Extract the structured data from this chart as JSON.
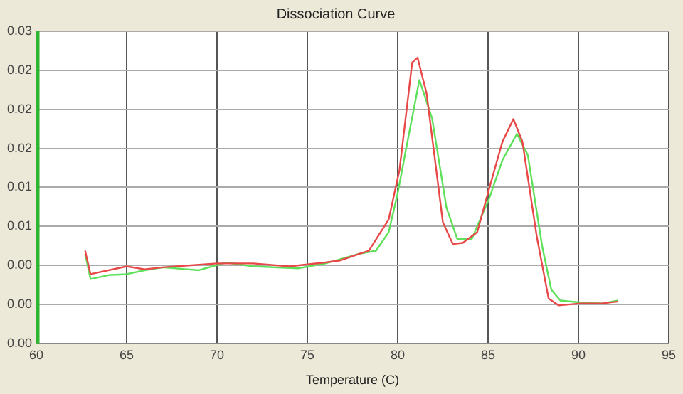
{
  "chart_data": {
    "type": "line",
    "title": "Dissociation Curve",
    "xlabel": "Temperature (C)",
    "xlim": [
      60,
      95
    ],
    "xticks": [
      60,
      65,
      70,
      75,
      80,
      85,
      90,
      95
    ],
    "ylim": [
      -0.004,
      0.028
    ],
    "yticks": [
      {
        "value": -0.004,
        "label": "0.00"
      },
      {
        "value": 0,
        "label": "0.00"
      },
      {
        "value": 0.004,
        "label": "0.00"
      },
      {
        "value": 0.008,
        "label": "0.01"
      },
      {
        "value": 0.012,
        "label": "0.01"
      },
      {
        "value": 0.016,
        "label": "0.02"
      },
      {
        "value": 0.02,
        "label": "0.02"
      },
      {
        "value": 0.024,
        "label": "0.02"
      },
      {
        "value": 0.028,
        "label": "0.03"
      }
    ],
    "grid": true,
    "legend": false,
    "marker": "none",
    "line_style": "solid",
    "series": [
      {
        "color": "#e84848",
        "x": [
          62.7,
          63.0,
          65,
          66,
          67,
          70,
          72,
          74,
          76,
          76.8,
          78.4,
          79.5,
          80.1,
          80.8,
          81.1,
          81.6,
          82.5,
          83.05,
          83.6,
          84.4,
          85.05,
          85.8,
          86.4,
          86.9,
          87.7,
          88.35,
          88.9,
          90.1,
          91.3,
          92.2
        ],
        "values": [
          0.0055,
          0.0031,
          0.0039,
          0.0036,
          0.0038,
          0.0042,
          0.0042,
          0.0039,
          0.0043,
          0.0045,
          0.0055,
          0.0087,
          0.0138,
          0.0248,
          0.0253,
          0.0216,
          0.0084,
          0.0062,
          0.0063,
          0.0074,
          0.0118,
          0.0167,
          0.019,
          0.0167,
          0.0069,
          0.0006,
          -0.0001,
          0.0001,
          0.0001,
          0.0003
        ]
      },
      {
        "color": "#5fe05a",
        "x": [
          62.7,
          63.0,
          64,
          65,
          66,
          67,
          69,
          70.5,
          72,
          74.5,
          76,
          77.9,
          78.8,
          79.5,
          80,
          80.5,
          81.2,
          81.9,
          82.7,
          83.3,
          84.1,
          85.05,
          85.8,
          86.6,
          87.2,
          88,
          88.5,
          89,
          90.1,
          91.3,
          92.2
        ],
        "values": [
          0.0052,
          0.0026,
          0.003,
          0.0031,
          0.0035,
          0.0038,
          0.0035,
          0.0043,
          0.0039,
          0.0037,
          0.0042,
          0.0052,
          0.0055,
          0.0074,
          0.0114,
          0.0163,
          0.023,
          0.0191,
          0.0099,
          0.0067,
          0.0067,
          0.0108,
          0.0148,
          0.0175,
          0.0153,
          0.0059,
          0.0015,
          0.0004,
          0.0002,
          0.0001,
          0.0004
        ]
      }
    ]
  }
}
